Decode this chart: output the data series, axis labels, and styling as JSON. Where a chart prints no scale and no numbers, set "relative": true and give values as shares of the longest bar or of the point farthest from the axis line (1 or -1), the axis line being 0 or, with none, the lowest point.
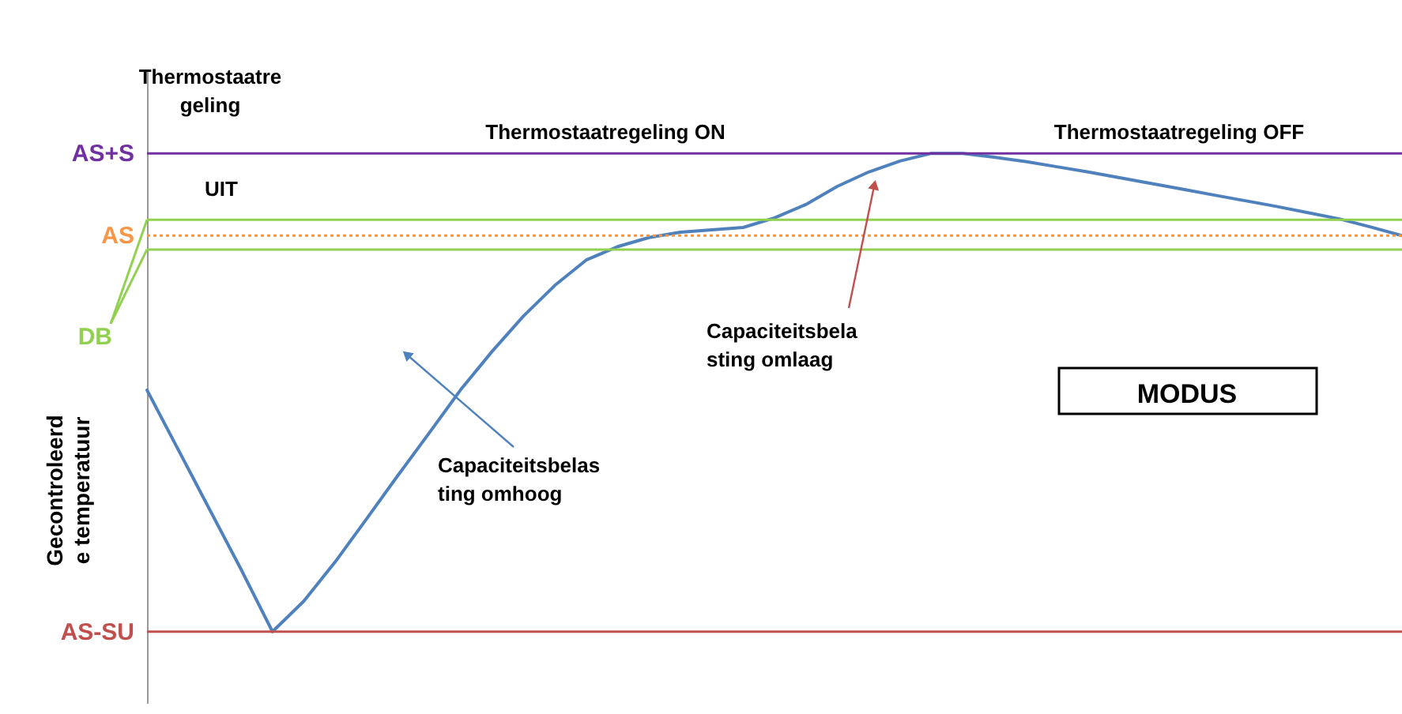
{
  "chart_data": {
    "type": "line",
    "relative": true,
    "ylabel": "Gecontroleerd e temperatuur",
    "grid": false,
    "marker": "none",
    "line_style": "solid",
    "categories": [
      null,
      null,
      null,
      null,
      null,
      null,
      null,
      null,
      null,
      null,
      null,
      null,
      null,
      null,
      null,
      null,
      null,
      null,
      null,
      null,
      null,
      null,
      null,
      null,
      null,
      null,
      null,
      null,
      null,
      null,
      null,
      null,
      null,
      null,
      null,
      null,
      null,
      null,
      null,
      null,
      null
    ],
    "series": [
      {
        "color": "#4f81bd",
        "values": [
          0.505,
          0.38,
          0.255,
          0.13,
          0,
          0.064,
          0.146,
          0.236,
          0.327,
          0.416,
          0.506,
          0.586,
          0.66,
          0.724,
          0.777,
          0.805,
          0.824,
          0.835,
          0.84,
          0.845,
          0.865,
          0.893,
          0.931,
          0.961,
          0.984,
          1,
          1,
          0.992,
          0.983,
          0.972,
          0.961,
          0.949,
          0.937,
          0.925,
          0.913,
          0.901,
          0.889,
          0.876,
          0.863,
          0.846,
          0.828
        ]
      }
    ],
    "ref_lines": [
      {
        "axis": "y",
        "value": 1,
        "label": "AS+S",
        "color": "#7030a0",
        "line_style": "solid"
      },
      {
        "axis": "y",
        "value": 0.861,
        "label": null,
        "color": "#92d050",
        "line_style": "solid"
      },
      {
        "axis": "y",
        "value": 0.828,
        "label": "AS",
        "color": "#f79646",
        "line_style": "dotted"
      },
      {
        "axis": "y",
        "value": 0.799,
        "label": "DB",
        "color": "#92d050",
        "line_style": "solid"
      },
      {
        "axis": "y",
        "value": 0,
        "label": "AS-SU",
        "color": "#c0504d",
        "line_style": "solid"
      }
    ],
    "annotations": [
      "Thermostaatre geling",
      "UIT",
      "Thermostaatregeling ON",
      "Thermostaatregeling OFF",
      "Capaciteitsbela sting omlaag",
      "Capaciteitsbelas ting omhoog",
      "MODUS"
    ]
  }
}
